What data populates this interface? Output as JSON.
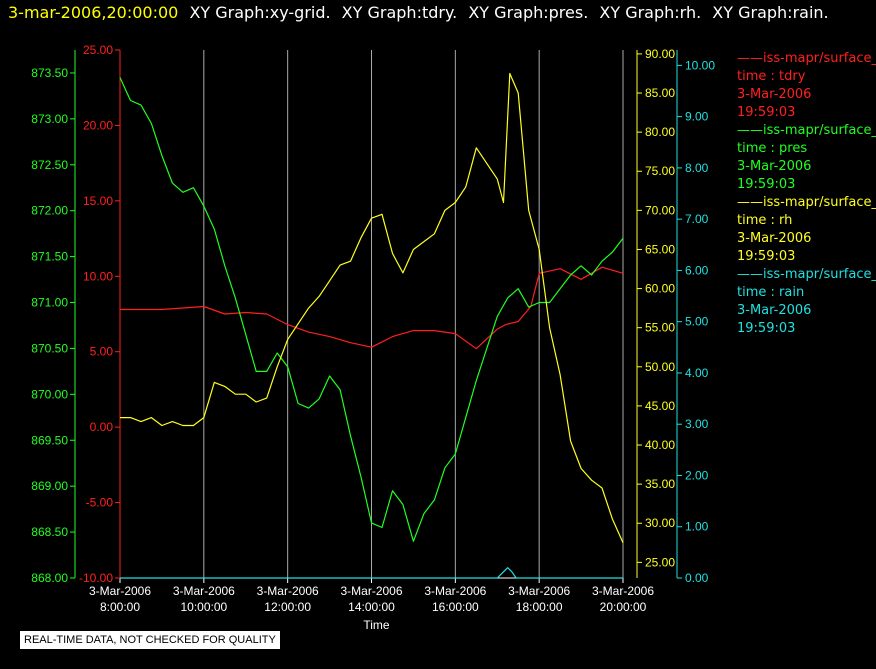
{
  "header": {
    "time": "3-mar-2006,20:00:00",
    "graphs": [
      "XY Graph:xy-grid.",
      "XY Graph:tdry.",
      "XY Graph:pres.",
      "XY Graph:rh.",
      "XY Graph:rain."
    ]
  },
  "legend": [
    {
      "name": "iss-mapr/surface_",
      "param": "time : tdry",
      "date": "3-Mar-2006",
      "time": "19:59:03",
      "color": "#ff2020"
    },
    {
      "name": "iss-mapr/surface_",
      "param": "time : pres",
      "date": "3-Mar-2006",
      "time": "19:59:03",
      "color": "#20ff20"
    },
    {
      "name": "iss-mapr/surface_",
      "param": "time : rh",
      "date": "3-Mar-2006",
      "time": "19:59:03",
      "color": "#ffff20"
    },
    {
      "name": "iss-mapr/surface_",
      "param": "time : rain",
      "date": "3-Mar-2006",
      "time": "19:59:03",
      "color": "#20e0e0"
    }
  ],
  "disclaimer": "REAL-TIME DATA, NOT CHECKED FOR QUALITY",
  "chart_data": {
    "type": "line",
    "xlabel": "Time",
    "x_ticks": [
      {
        "hour": 8,
        "date": "3-Mar-2006",
        "time": "8:00:00"
      },
      {
        "hour": 10,
        "date": "3-Mar-2006",
        "time": "10:00:00"
      },
      {
        "hour": 12,
        "date": "3-Mar-2006",
        "time": "12:00:00"
      },
      {
        "hour": 14,
        "date": "3-Mar-2006",
        "time": "14:00:00"
      },
      {
        "hour": 16,
        "date": "3-Mar-2006",
        "time": "16:00:00"
      },
      {
        "hour": 18,
        "date": "3-Mar-2006",
        "time": "18:00:00"
      },
      {
        "hour": 20,
        "date": "3-Mar-2006",
        "time": "20:00:00"
      }
    ],
    "xlim": [
      8,
      20
    ],
    "grid": "vertical",
    "axes": {
      "pres": {
        "ylim": [
          868.0,
          873.75
        ],
        "ticks": [
          "868.00",
          "868.50",
          "869.00",
          "869.50",
          "870.00",
          "870.50",
          "871.00",
          "871.50",
          "872.00",
          "872.50",
          "873.00",
          "873.50"
        ],
        "color": "#20ff20"
      },
      "tdry": {
        "ylim": [
          -10,
          25
        ],
        "ticks": [
          "-10.00",
          "-5.00",
          "0.00",
          "5.00",
          "10.00",
          "15.00",
          "20.00",
          "25.00"
        ],
        "color": "#ff2020"
      },
      "rh": {
        "ylim": [
          23.0,
          90.5
        ],
        "ticks": [
          "25.00",
          "30.00",
          "35.00",
          "40.00",
          "45.00",
          "50.00",
          "55.00",
          "60.00",
          "65.00",
          "70.00",
          "75.00",
          "80.00",
          "85.00",
          "90.00"
        ],
        "color": "#ffff20"
      },
      "rain": {
        "ylim": [
          0,
          10.3
        ],
        "ticks": [
          "0.00",
          "1.00",
          "2.00",
          "3.00",
          "4.00",
          "5.00",
          "6.00",
          "7.00",
          "8.00",
          "9.00",
          "10.00"
        ],
        "color": "#20e0e0"
      }
    },
    "series": [
      {
        "name": "tdry",
        "axis": "tdry",
        "x": [
          8.0,
          9.0,
          10.0,
          10.5,
          11.0,
          11.5,
          12.0,
          12.5,
          13.0,
          13.5,
          14.0,
          14.5,
          15.0,
          15.5,
          16.0,
          16.5,
          17.0,
          17.2,
          17.5,
          17.8,
          18.0,
          18.5,
          19.0,
          19.5,
          20.0
        ],
        "y": [
          7.8,
          7.8,
          8.0,
          7.5,
          7.6,
          7.5,
          6.8,
          6.3,
          6.0,
          5.6,
          5.3,
          6.0,
          6.4,
          6.4,
          6.2,
          5.2,
          6.5,
          6.8,
          7.0,
          8.0,
          10.2,
          10.5,
          9.8,
          10.6,
          10.2
        ]
      },
      {
        "name": "pres",
        "axis": "pres",
        "x": [
          8.0,
          8.25,
          8.5,
          8.75,
          9.0,
          9.25,
          9.5,
          9.75,
          10.0,
          10.25,
          10.5,
          10.75,
          11.0,
          11.25,
          11.5,
          11.75,
          12.0,
          12.25,
          12.5,
          12.75,
          13.0,
          13.25,
          13.5,
          13.75,
          14.0,
          14.25,
          14.5,
          14.75,
          15.0,
          15.25,
          15.5,
          15.75,
          16.0,
          16.25,
          16.5,
          16.75,
          17.0,
          17.25,
          17.5,
          17.75,
          18.0,
          18.25,
          18.5,
          18.75,
          19.0,
          19.25,
          19.5,
          19.75,
          20.0
        ],
        "y": [
          873.45,
          873.2,
          873.15,
          872.95,
          872.6,
          872.3,
          872.2,
          872.25,
          872.05,
          871.8,
          871.4,
          871.05,
          870.65,
          870.25,
          870.25,
          870.45,
          870.3,
          869.9,
          869.85,
          869.95,
          870.2,
          870.05,
          869.55,
          869.1,
          868.6,
          868.55,
          868.95,
          868.8,
          868.4,
          868.7,
          868.85,
          869.2,
          869.35,
          869.75,
          870.15,
          870.5,
          870.85,
          871.05,
          871.15,
          870.95,
          871.0,
          871.0,
          871.15,
          871.3,
          871.4,
          871.3,
          871.45,
          871.55,
          871.7
        ]
      },
      {
        "name": "rh",
        "axis": "rh",
        "x": [
          8.0,
          8.25,
          8.5,
          8.75,
          9.0,
          9.25,
          9.5,
          9.75,
          10.0,
          10.25,
          10.5,
          10.75,
          11.0,
          11.25,
          11.5,
          11.75,
          12.0,
          12.25,
          12.5,
          12.75,
          13.0,
          13.25,
          13.5,
          13.75,
          14.0,
          14.25,
          14.5,
          14.75,
          15.0,
          15.25,
          15.5,
          15.75,
          16.0,
          16.25,
          16.5,
          16.75,
          17.0,
          17.15,
          17.3,
          17.5,
          17.75,
          18.0,
          18.25,
          18.5,
          18.75,
          19.0,
          19.25,
          19.5,
          19.75,
          20.0
        ],
        "y": [
          43.5,
          43.5,
          43.0,
          43.5,
          42.5,
          43.0,
          42.5,
          42.5,
          43.5,
          48.0,
          47.5,
          46.5,
          46.5,
          45.5,
          46.0,
          50.0,
          53.5,
          55.5,
          57.5,
          59.0,
          61.0,
          63.0,
          63.5,
          66.5,
          69.0,
          69.5,
          64.5,
          62.0,
          65.0,
          66.0,
          67.0,
          70.0,
          71.0,
          73.0,
          78.0,
          76.0,
          74.0,
          71.0,
          87.5,
          85.0,
          70.0,
          65.0,
          55.0,
          49.0,
          40.5,
          37.0,
          35.5,
          34.5,
          30.5,
          27.5
        ]
      },
      {
        "name": "rain",
        "axis": "rain",
        "x": [
          8.0,
          17.0,
          17.15,
          17.25,
          17.35,
          17.45,
          20.0
        ],
        "y": [
          0,
          0,
          0.12,
          0.2,
          0.12,
          0,
          0
        ]
      }
    ]
  }
}
